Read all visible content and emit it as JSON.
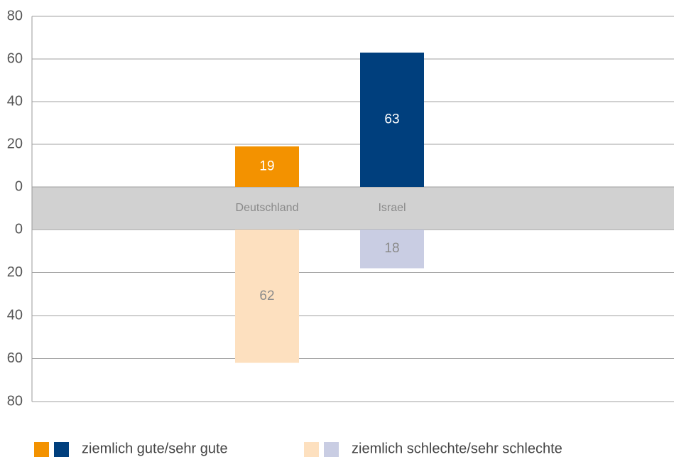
{
  "chart_data": {
    "type": "bar",
    "categories": [
      "Deutschland",
      "Israel"
    ],
    "series": [
      {
        "name": "ziemlich gute/sehr gute",
        "colors": [
          "#f39200",
          "#003f7d"
        ],
        "label_color": "#ffffff",
        "values": [
          19,
          63
        ]
      },
      {
        "name": "ziemlich schlechte/sehr schlechte",
        "colors": [
          "#fde0bf",
          "#c9cde3"
        ],
        "label_color": "#8a8a8a",
        "axis": "y2",
        "values": [
          62,
          18
        ]
      }
    ],
    "ylim": [
      0,
      80
    ],
    "yticks": [
      0,
      20,
      40,
      60,
      80
    ],
    "y2lim": [
      0,
      80
    ],
    "y2ticks": [
      0,
      20,
      40,
      60,
      80
    ],
    "grid": true
  }
}
